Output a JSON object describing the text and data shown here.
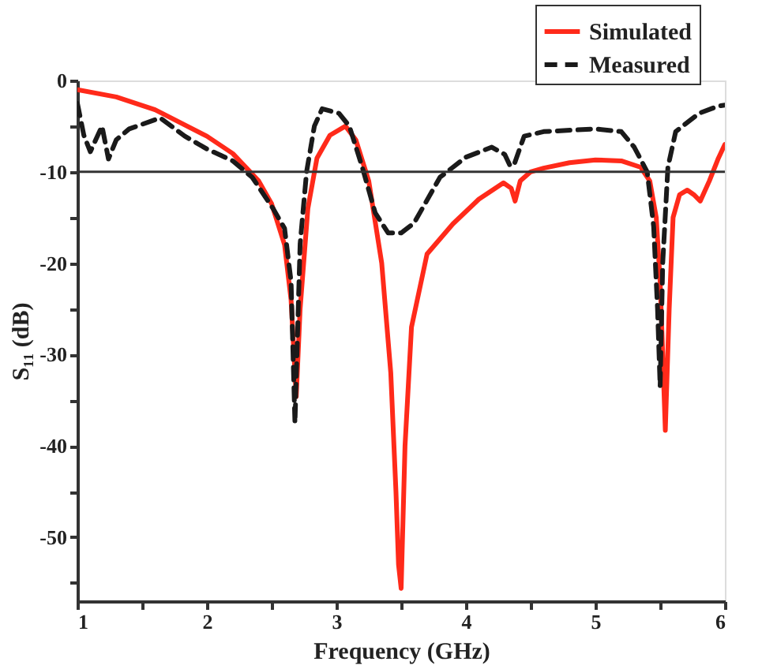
{
  "chart_data": {
    "type": "line",
    "xlabel": "Frequency (GHz)",
    "ylabel": "S₁₁ (dB)",
    "xlim": [
      1,
      6
    ],
    "ylim": [
      -57,
      0
    ],
    "xticks": [
      1,
      {
        "value": 1.5,
        "label": null
      },
      2,
      {
        "value": 2.5,
        "label": null
      },
      3,
      {
        "value": 3.5,
        "label": null
      },
      4,
      {
        "value": 4.5,
        "label": null
      },
      5,
      {
        "value": 5.5,
        "label": null
      },
      6
    ],
    "yticks": [
      {
        "value": -55,
        "label": null
      },
      -50,
      {
        "value": -45,
        "label": null
      },
      -40,
      {
        "value": -35,
        "label": null
      },
      -30,
      {
        "value": -25,
        "label": null
      },
      -20,
      {
        "value": -15,
        "label": null
      },
      -10,
      {
        "value": -5,
        "label": null
      },
      0
    ],
    "grid": false,
    "legend": "top right",
    "marker": "none",
    "ref_lines": [
      {
        "axis": "y",
        "value": -10,
        "color": "#333333",
        "line_style": "solid"
      }
    ],
    "series": [
      {
        "name": "Simulated",
        "color": "#ff2a1a",
        "line_style": "solid",
        "x": [
          1,
          1.3,
          1.6,
          2.0,
          2.2,
          2.4,
          2.5,
          2.6,
          2.65,
          2.69,
          2.72,
          2.78,
          2.85,
          2.95,
          3.07,
          3.15,
          3.25,
          3.35,
          3.42,
          3.46,
          3.48,
          3.5,
          3.53,
          3.58,
          3.7,
          3.9,
          4.1,
          4.29,
          4.35,
          4.38,
          4.42,
          4.5,
          4.6,
          4.8,
          5.0,
          5.2,
          5.35,
          5.42,
          5.47,
          5.5,
          5.52,
          5.54,
          5.57,
          5.6,
          5.65,
          5.71,
          5.76,
          5.81,
          5.88,
          5.95,
          6.0
        ],
        "values": [
          -1,
          -1.8,
          -3.2,
          -6.1,
          -8,
          -11,
          -13.5,
          -18,
          -24,
          -34.6,
          -25,
          -14,
          -8.5,
          -6,
          -5.0,
          -6.5,
          -11,
          -20,
          -32,
          -45,
          -53,
          -55.6,
          -40,
          -27,
          -19,
          -15.7,
          -13,
          -11.2,
          -11.8,
          -13.2,
          -11,
          -10,
          -9.6,
          -9,
          -8.7,
          -8.8,
          -9.5,
          -11,
          -15,
          -22,
          -30,
          -38.3,
          -25,
          -15,
          -12.5,
          -12,
          -12.5,
          -13.2,
          -11,
          -8.5,
          -7.0
        ]
      },
      {
        "name": "Measured",
        "color": "#1a1a1a",
        "line_style": "dashed",
        "x": [
          1,
          1.05,
          1.1,
          1.19,
          1.24,
          1.3,
          1.4,
          1.64,
          1.83,
          2.0,
          2.2,
          2.35,
          2.51,
          2.6,
          2.65,
          2.68,
          2.72,
          2.77,
          2.83,
          2.89,
          3.02,
          3.1,
          3.2,
          3.3,
          3.4,
          3.5,
          3.6,
          3.8,
          4.0,
          4.2,
          4.3,
          4.34,
          4.37,
          4.45,
          4.6,
          5.0,
          5.2,
          5.3,
          5.4,
          5.45,
          5.48,
          5.5,
          5.52,
          5.56,
          5.62,
          5.8,
          5.95,
          6.0
        ],
        "values": [
          -2.5,
          -6,
          -7.8,
          -5,
          -8.6,
          -6.5,
          -5.3,
          -4.1,
          -6.1,
          -7.5,
          -8.8,
          -10.6,
          -14,
          -16.2,
          -22,
          -37.5,
          -17.9,
          -10,
          -5,
          -3.1,
          -3.6,
          -5,
          -9.5,
          -14.5,
          -16.7,
          -16.7,
          -15.6,
          -10.6,
          -8.4,
          -7.3,
          -8.1,
          -9.3,
          -9.3,
          -6.1,
          -5.6,
          -5.3,
          -5.6,
          -7.3,
          -10,
          -16,
          -25,
          -33.5,
          -20,
          -9.5,
          -5.6,
          -3.6,
          -2.8,
          -2.7
        ]
      }
    ]
  }
}
